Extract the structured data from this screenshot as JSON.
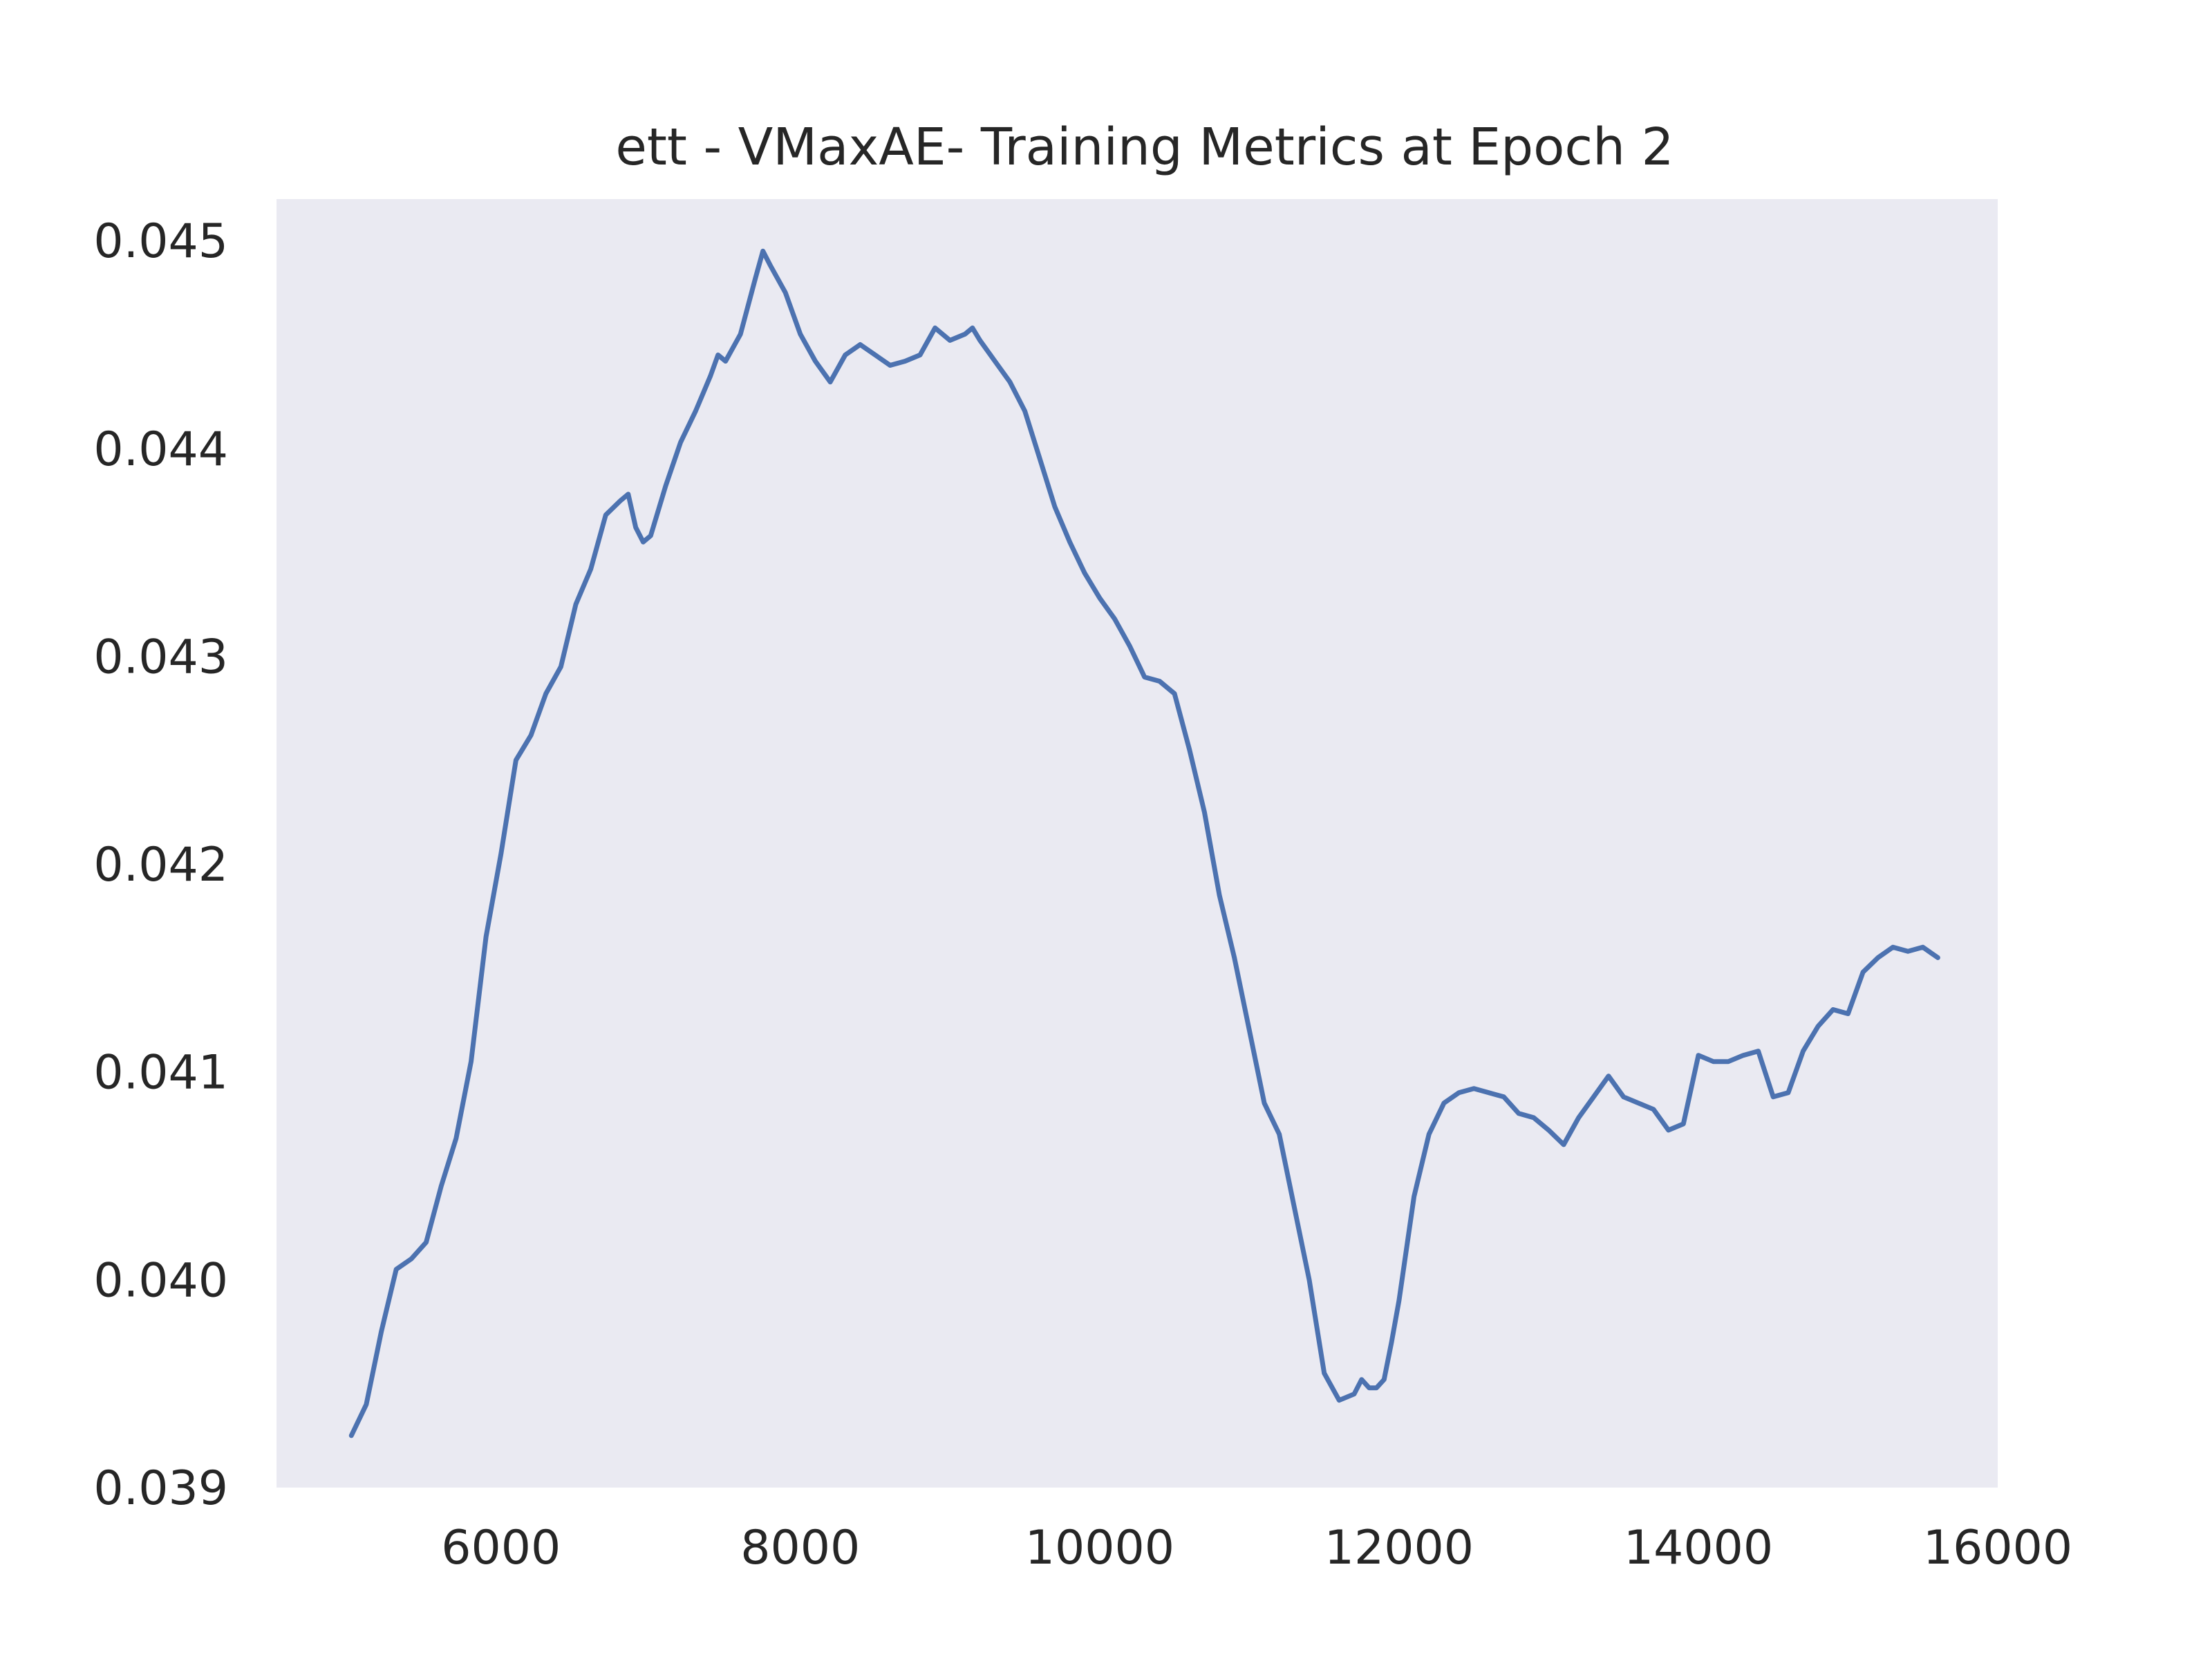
{
  "chart_data": {
    "type": "line",
    "title": "ett - VMaxAE- Training Metrics at Epoch 2",
    "xlabel": "",
    "ylabel": "",
    "xlim": [
      4500,
      16000
    ],
    "ylim": [
      0.039,
      0.0452
    ],
    "xticks": [
      6000,
      8000,
      10000,
      12000,
      14000,
      16000
    ],
    "xtick_labels": [
      "6000",
      "8000",
      "10000",
      "12000",
      "14000",
      "16000"
    ],
    "yticks": [
      0.039,
      0.04,
      0.041,
      0.042,
      0.043,
      0.044,
      0.045
    ],
    "ytick_labels": [
      "0.039",
      "0.040",
      "0.041",
      "0.042",
      "0.043",
      "0.044",
      "0.045"
    ],
    "grid": false,
    "legend": "none",
    "colors": {
      "plot_background": "#eaeaf2",
      "line": "#4c72b0",
      "text": "#262626"
    },
    "series": [
      {
        "x": [
          5000,
          5100,
          5200,
          5300,
          5400,
          5500,
          5600,
          5700,
          5800,
          5900,
          6000,
          6100,
          6200,
          6300,
          6400,
          6500,
          6600,
          6700,
          6800,
          6850,
          6900,
          6950,
          7000,
          7100,
          7200,
          7300,
          7400,
          7450,
          7500,
          7600,
          7700,
          7750,
          7800,
          7900,
          8000,
          8100,
          8200,
          8300,
          8400,
          8500,
          8600,
          8700,
          8800,
          8900,
          8950,
          9000,
          9100,
          9150,
          9200,
          9300,
          9400,
          9500,
          9600,
          9700,
          9800,
          9900,
          10000,
          10100,
          10200,
          10300,
          10400,
          10500,
          10600,
          10700,
          10800,
          10900,
          11000,
          11100,
          11200,
          11300,
          11400,
          11500,
          11600,
          11700,
          11750,
          11800,
          11850,
          11900,
          11950,
          12000,
          12100,
          12200,
          12300,
          12400,
          12500,
          12600,
          12700,
          12800,
          12900,
          13000,
          13100,
          13200,
          13300,
          13400,
          13500,
          13600,
          13700,
          13800,
          13900,
          14000,
          14100,
          14200,
          14300,
          14400,
          14500,
          14600,
          14700,
          14800,
          14900,
          15000,
          15100,
          15200,
          15300,
          15400,
          15500,
          15600
        ],
        "y": [
          0.03925,
          0.0394,
          0.03975,
          0.04005,
          0.0401,
          0.04018,
          0.04045,
          0.04068,
          0.04105,
          0.04165,
          0.04205,
          0.0425,
          0.04262,
          0.04282,
          0.04295,
          0.04325,
          0.04342,
          0.04368,
          0.04375,
          0.04378,
          0.04362,
          0.04355,
          0.04358,
          0.04382,
          0.04403,
          0.04418,
          0.04435,
          0.04445,
          0.04442,
          0.04455,
          0.04482,
          0.04495,
          0.04488,
          0.04475,
          0.04455,
          0.04442,
          0.04432,
          0.04445,
          0.0445,
          0.04445,
          0.0444,
          0.04442,
          0.04445,
          0.04458,
          0.04455,
          0.04452,
          0.04455,
          0.04458,
          0.04452,
          0.04442,
          0.04432,
          0.04418,
          0.04395,
          0.04372,
          0.04355,
          0.0434,
          0.04328,
          0.04318,
          0.04305,
          0.0429,
          0.04288,
          0.04282,
          0.04255,
          0.04225,
          0.04185,
          0.04155,
          0.0412,
          0.04085,
          0.0407,
          0.04035,
          0.04,
          0.03955,
          0.03942,
          0.03945,
          0.03952,
          0.03948,
          0.03948,
          0.03952,
          0.0397,
          0.0399,
          0.0404,
          0.0407,
          0.04085,
          0.0409,
          0.04092,
          0.0409,
          0.04088,
          0.0408,
          0.04078,
          0.04072,
          0.04065,
          0.04078,
          0.04088,
          0.04098,
          0.04088,
          0.04085,
          0.04082,
          0.04072,
          0.04075,
          0.04108,
          0.04105,
          0.04105,
          0.04108,
          0.0411,
          0.04088,
          0.0409,
          0.0411,
          0.04122,
          0.0413,
          0.04128,
          0.04148,
          0.04155,
          0.0416,
          0.04158,
          0.0416,
          0.04155
        ]
      }
    ]
  }
}
